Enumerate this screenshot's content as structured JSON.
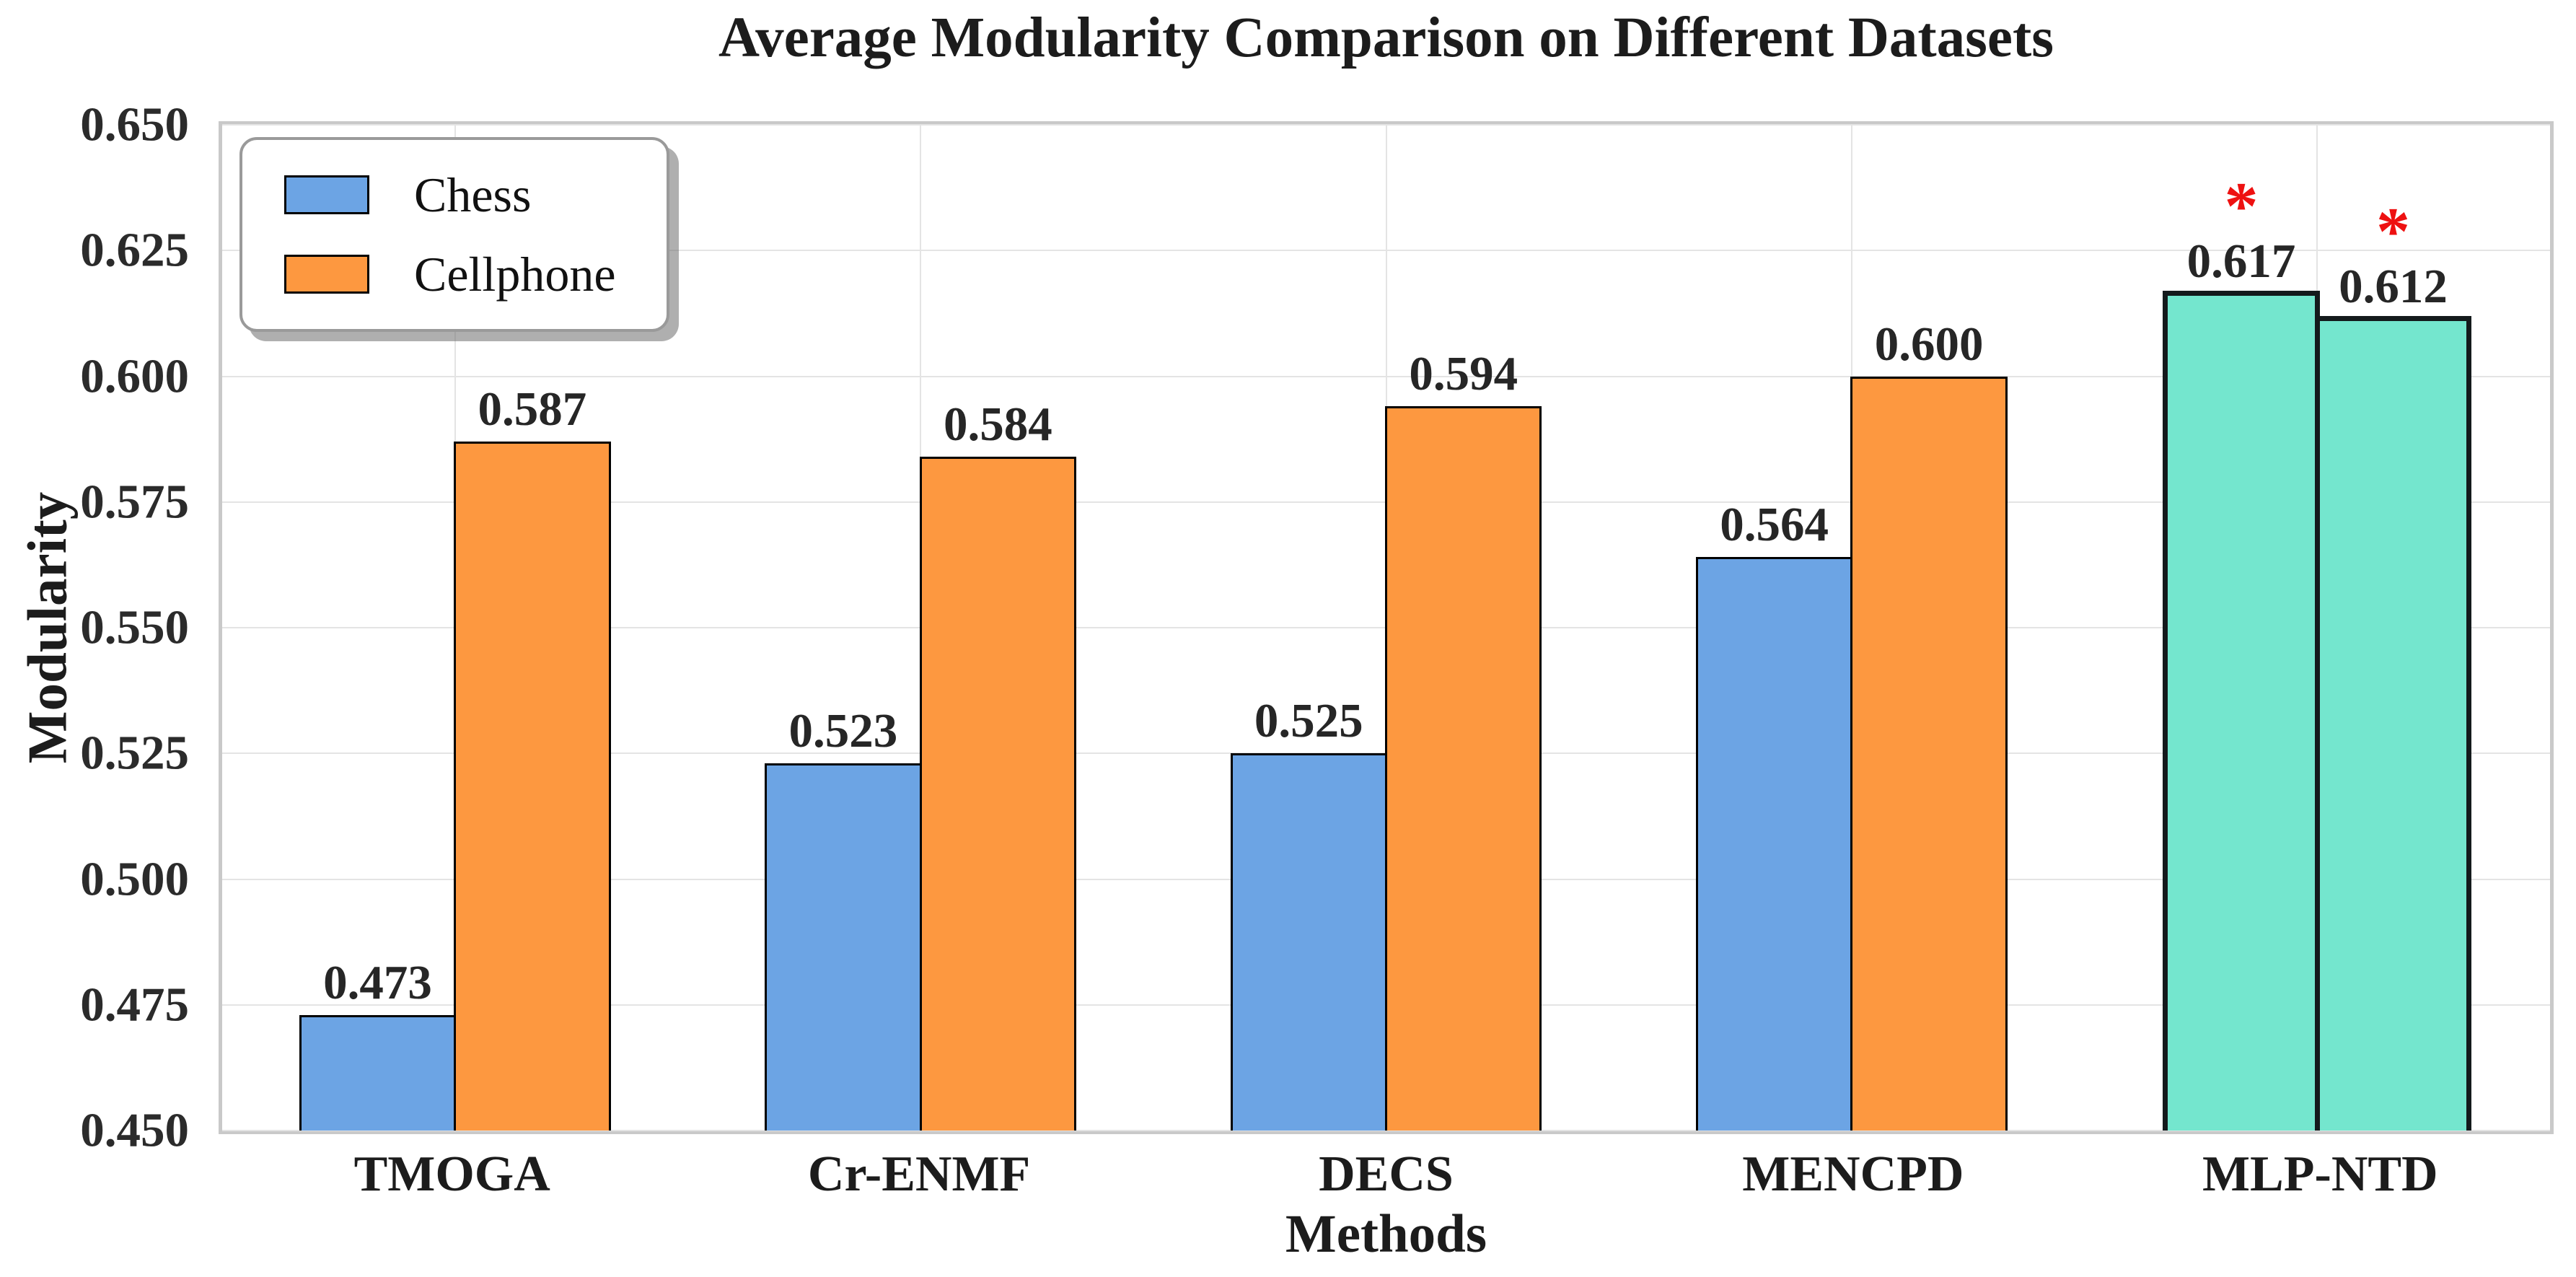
{
  "chart_data": {
    "type": "bar",
    "title": "Average Modularity Comparison on Different Datasets",
    "xlabel": "Methods",
    "ylabel": "Modularity",
    "categories": [
      "TMOGA",
      "Cr-ENMF",
      "DECS",
      "MENCPD",
      "MLP-NTD"
    ],
    "series": [
      {
        "name": "Chess",
        "color": "#6CA4E4",
        "values": [
          0.473,
          0.523,
          0.525,
          0.564,
          0.617
        ],
        "labels": [
          "0.473",
          "0.523",
          "0.525",
          "0.564",
          "0.617"
        ]
      },
      {
        "name": "Cellphone",
        "color": "#FD9840",
        "values": [
          0.587,
          0.584,
          0.594,
          0.6,
          0.612
        ],
        "labels": [
          "0.587",
          "0.584",
          "0.594",
          "0.600",
          "0.612"
        ]
      }
    ],
    "highlight": {
      "category": "MLP-NTD",
      "bar_color": "#74E6CE",
      "edge_color": "#141A1C",
      "annotation": "*",
      "annotation_color": "#EE1111"
    },
    "ylim": [
      0.45,
      0.65
    ],
    "yticks": [
      "0.650",
      "0.625",
      "0.600",
      "0.575",
      "0.550",
      "0.525",
      "0.500",
      "0.475",
      "0.450"
    ],
    "grid": true,
    "legend": {
      "position": "upper left",
      "entries": [
        "Chess",
        "Cellphone"
      ]
    }
  }
}
